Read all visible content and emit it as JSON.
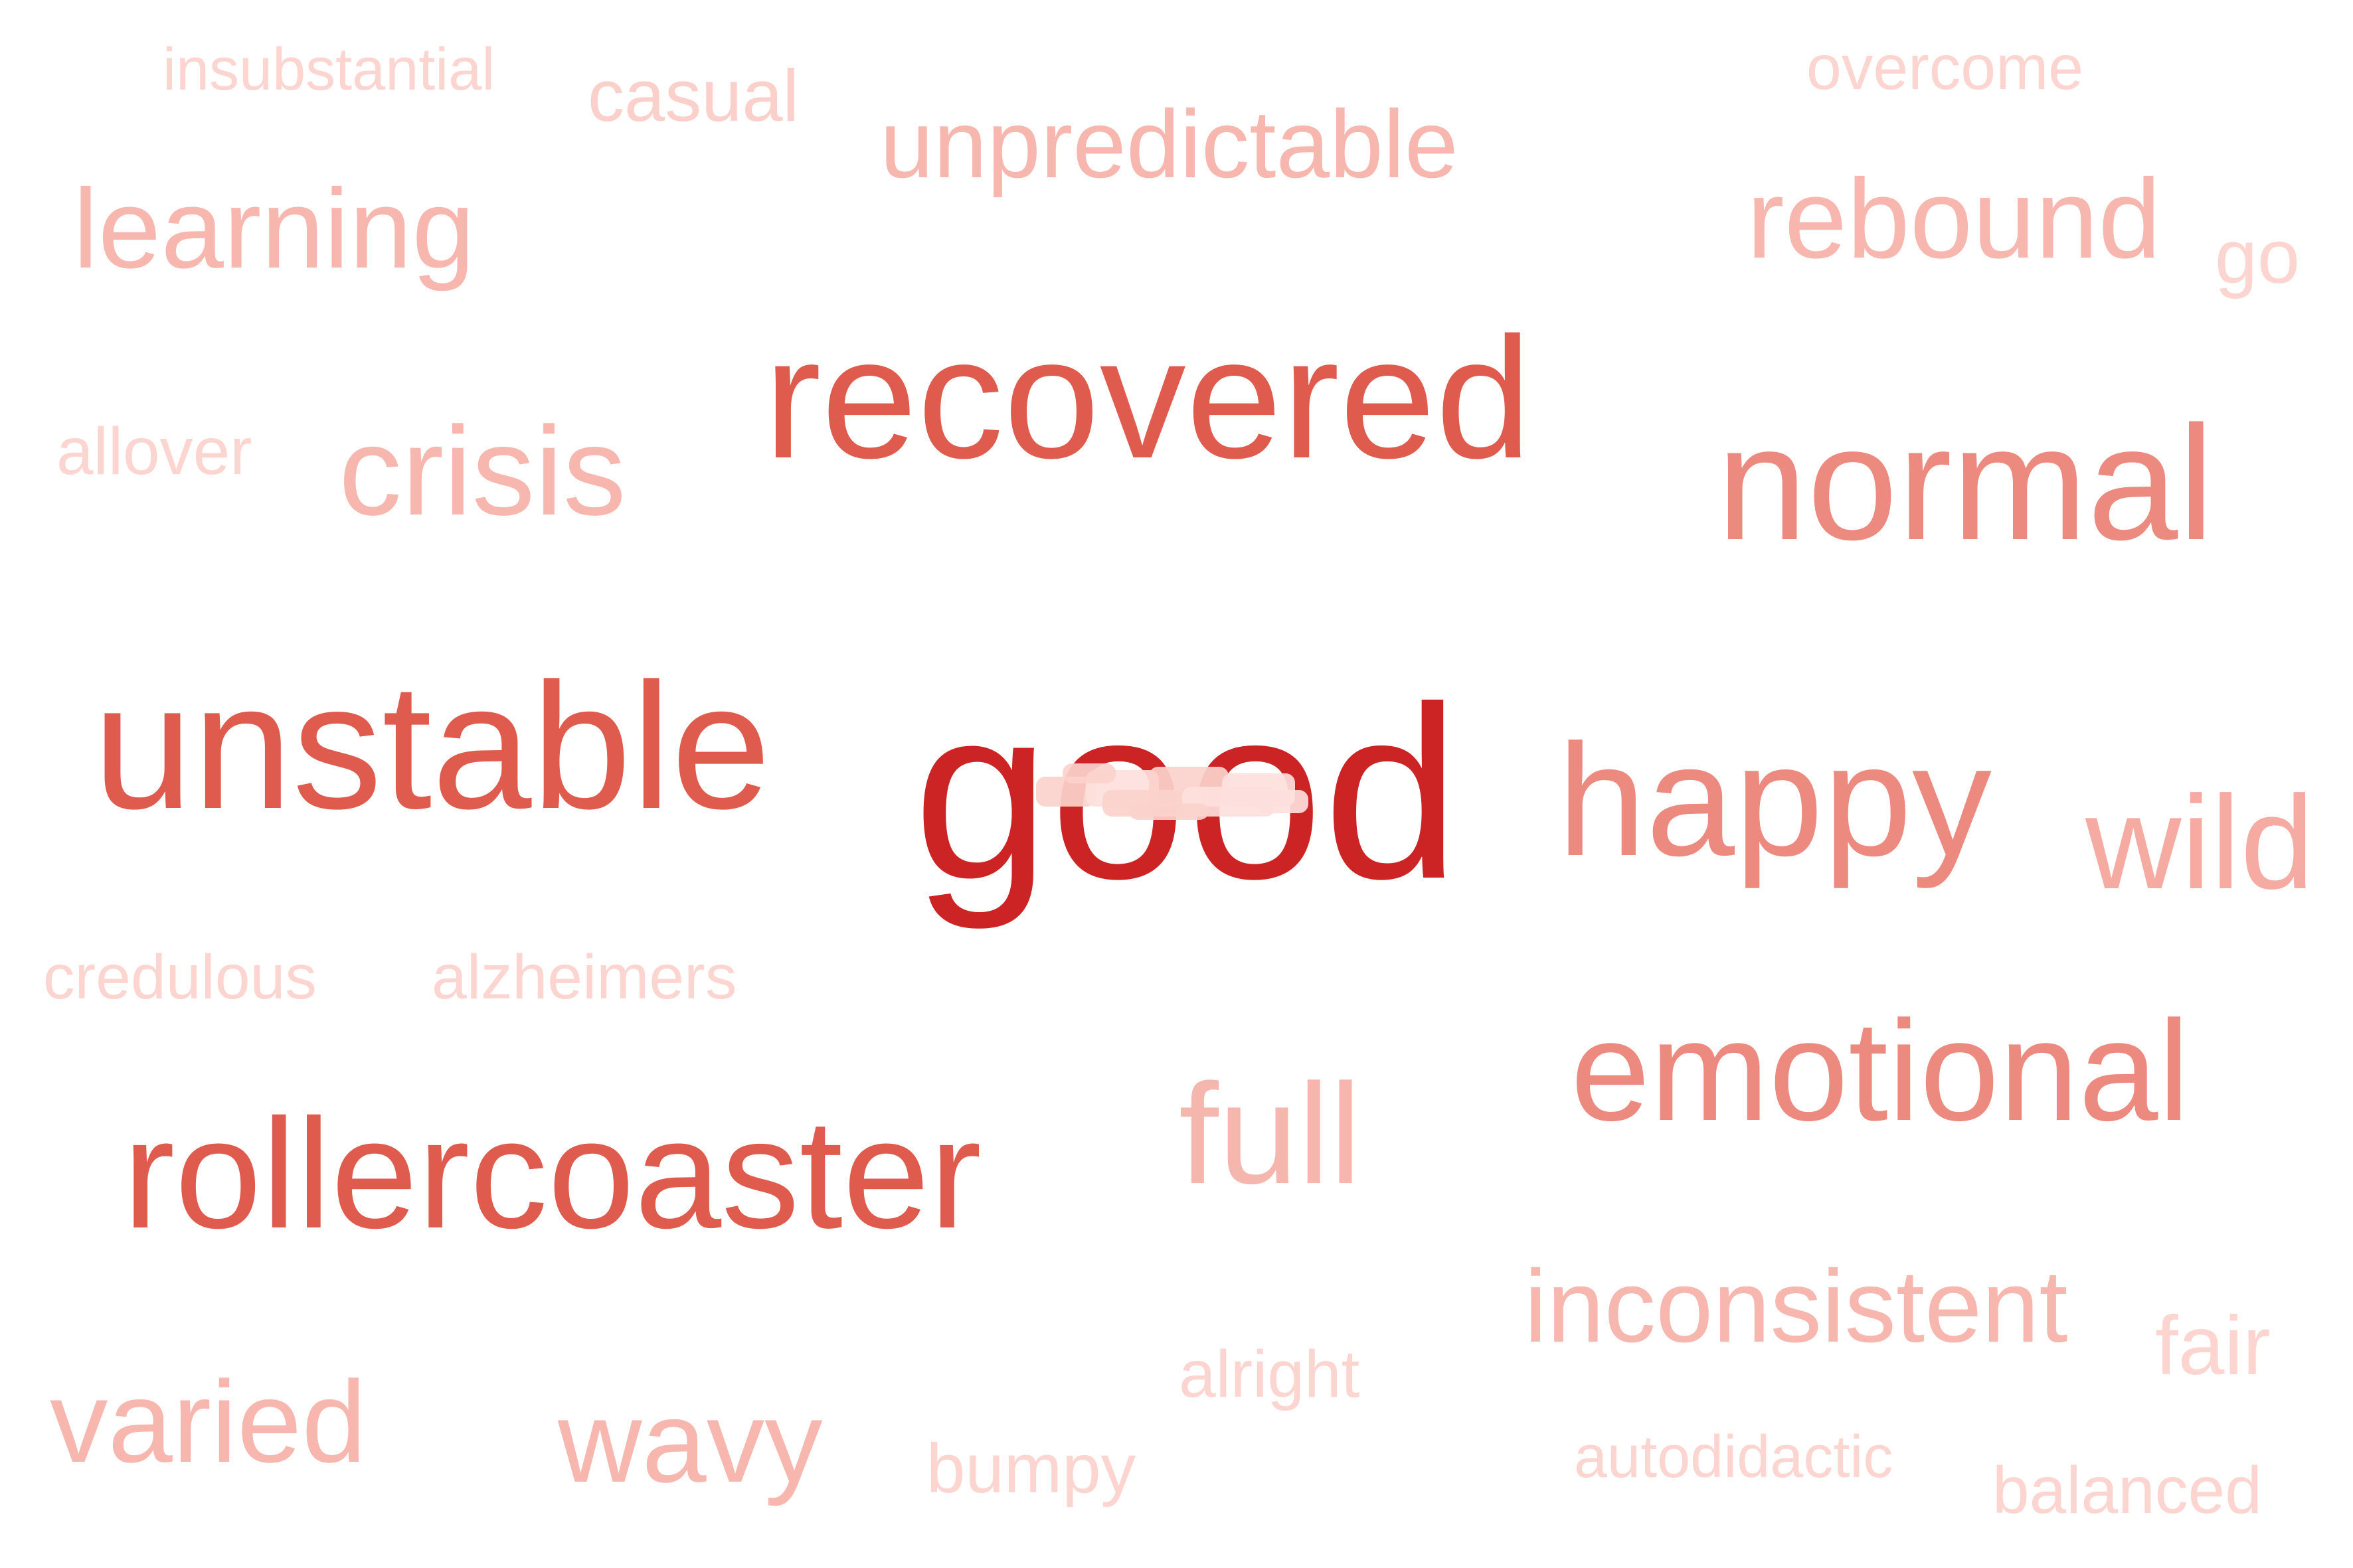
{
  "word_cloud": {
    "words": [
      {
        "text": "good",
        "color": "#cc2424"
      },
      {
        "text": "recovered",
        "color": "#de5b4e"
      },
      {
        "text": "unstable",
        "color": "#de5b4e"
      },
      {
        "text": "rollercoaster",
        "color": "#de5b4e"
      },
      {
        "text": "normal",
        "color": "#ec8a80"
      },
      {
        "text": "happy",
        "color": "#ec8a80"
      },
      {
        "text": "emotional",
        "color": "#ec8a80"
      },
      {
        "text": "wild",
        "color": "#f5aaa2"
      },
      {
        "text": "full",
        "color": "#f5b6ae"
      },
      {
        "text": "crisis",
        "color": "#f7b6ae"
      },
      {
        "text": "learning",
        "color": "#f7b6ae"
      },
      {
        "text": "rebound",
        "color": "#f7b6ae"
      },
      {
        "text": "unpredictable",
        "color": "#f7b6ae"
      },
      {
        "text": "inconsistent",
        "color": "#f7b6ae"
      },
      {
        "text": "varied",
        "color": "#f7b6ae"
      },
      {
        "text": "wavy",
        "color": "#f7b6ae"
      },
      {
        "text": "casual",
        "color": "#fcd0ca"
      },
      {
        "text": "insubstantial",
        "color": "#fdd5d0"
      },
      {
        "text": "overcome",
        "color": "#fdd5d0"
      },
      {
        "text": "go",
        "color": "#fdd5d0"
      },
      {
        "text": "allover",
        "color": "#fdd5d0"
      },
      {
        "text": "credulous",
        "color": "#fdd5d0"
      },
      {
        "text": "alzheimers",
        "color": "#fdd5d0"
      },
      {
        "text": "alright",
        "color": "#fdd5d0"
      },
      {
        "text": "bumpy",
        "color": "#fdd5d0"
      },
      {
        "text": "autodidactic",
        "color": "#fdd5d0"
      },
      {
        "text": "fair",
        "color": "#fdd5d0"
      },
      {
        "text": "balanced",
        "color": "#fdd5d0"
      }
    ]
  }
}
